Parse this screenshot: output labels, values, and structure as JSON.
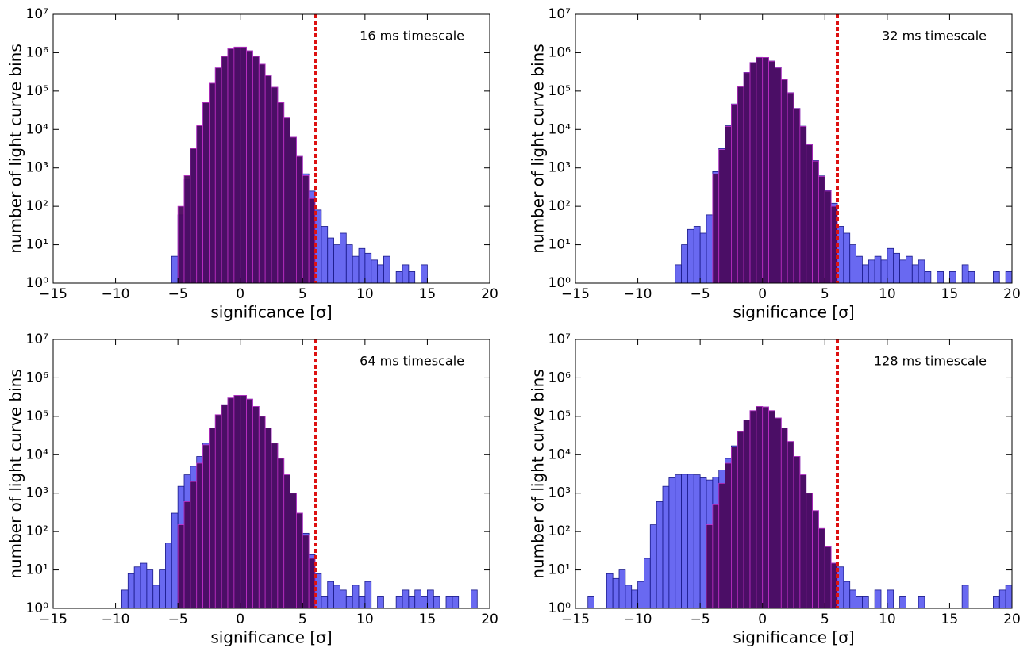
{
  "chart_data": [
    {
      "type": "histogram",
      "annotation": "16 ms timescale",
      "xlabel": "significance [σ]",
      "ylabel": "number of light curve bins",
      "xlim": [
        -15,
        20
      ],
      "ylim": [
        1,
        10000000
      ],
      "log_y": true,
      "threshold": 6,
      "threshold_color": "#dd1111",
      "xticks": [
        {
          "value": -15,
          "label": "−15"
        },
        {
          "value": -10,
          "label": "−10"
        },
        {
          "value": -5,
          "label": "−5"
        },
        0,
        5,
        10,
        15,
        20
      ],
      "yticks": [
        {
          "value": 1,
          "label": "10⁰"
        },
        {
          "value": 10,
          "label": "10¹"
        },
        {
          "value": 100,
          "label": "10²"
        },
        {
          "value": 1000,
          "label": "10³"
        },
        {
          "value": 10000,
          "label": "10⁴"
        },
        {
          "value": 100000,
          "label": "10⁵"
        },
        {
          "value": 1000000,
          "label": "10⁶"
        },
        {
          "value": 10000000,
          "label": "10⁷"
        }
      ],
      "series": [
        {
          "color": "#4444ee",
          "bins": [
            -5.5,
            -5,
            -4.5,
            -4,
            -3.5,
            -3,
            -2.5,
            -2,
            -1.5,
            -1,
            -0.5,
            0,
            0.5,
            1,
            1.5,
            2,
            2.5,
            3,
            3.5,
            4,
            4.5,
            5,
            5.5,
            6,
            6.5,
            7,
            7.5,
            8,
            8.5,
            9,
            9.5,
            10,
            10.5,
            11,
            11.5,
            12,
            12.5,
            13,
            13.5,
            14,
            14.5,
            15,
            15.5,
            16,
            16.5
          ],
          "values": [
            5,
            60,
            500,
            3000,
            12000,
            50000,
            160000,
            400000,
            800000,
            1260000,
            1400000,
            1400000,
            1120000,
            800000,
            500000,
            250000,
            126000,
            50000,
            20000,
            6300,
            2000,
            700,
            250,
            80,
            30,
            15,
            10,
            20,
            10,
            5,
            8,
            6,
            4,
            3,
            5,
            0,
            2,
            3,
            2,
            1,
            3,
            0,
            0,
            1
          ]
        },
        {
          "color": "#4a0a5e",
          "bins": [
            -5,
            -4.5,
            -4,
            -3.5,
            -3,
            -2.5,
            -2,
            -1.5,
            -1,
            -0.5,
            0,
            0.5,
            1,
            1.5,
            2,
            2.5,
            3,
            3.5,
            4,
            4.5,
            5,
            5.5,
            6
          ],
          "values": [
            100,
            630,
            3200,
            12600,
            50000,
            160000,
            400000,
            800000,
            1260000,
            1400000,
            1400000,
            1120000,
            800000,
            500000,
            250000,
            126000,
            50000,
            20000,
            6300,
            2000,
            630,
            160
          ]
        }
      ]
    },
    {
      "type": "histogram",
      "annotation": "32 ms timescale",
      "xlabel": "significance [σ]",
      "ylabel": "number of light curve bins",
      "xlim": [
        -15,
        20
      ],
      "ylim": [
        1,
        10000000
      ],
      "log_y": true,
      "threshold": 6,
      "threshold_color": "#dd1111",
      "xticks": [
        {
          "value": -15,
          "label": "−15"
        },
        {
          "value": -10,
          "label": "−10"
        },
        {
          "value": -5,
          "label": "−5"
        },
        0,
        5,
        10,
        15,
        20
      ],
      "yticks": [
        {
          "value": 1,
          "label": "10⁰"
        },
        {
          "value": 10,
          "label": "10¹"
        },
        {
          "value": 100,
          "label": "10²"
        },
        {
          "value": 1000,
          "label": "10³"
        },
        {
          "value": 10000,
          "label": "10⁴"
        },
        {
          "value": 100000,
          "label": "10⁵"
        },
        {
          "value": 1000000,
          "label": "10⁶"
        },
        {
          "value": 10000000,
          "label": "10⁷"
        }
      ],
      "series": [
        {
          "color": "#4444ee",
          "bins": [
            -7,
            -6.5,
            -6,
            -5.5,
            -5,
            -4.5,
            -4,
            -3.5,
            -3,
            -2.5,
            -2,
            -1.5,
            -1,
            -0.5,
            0,
            0.5,
            1,
            1.5,
            2,
            2.5,
            3,
            3.5,
            4,
            4.5,
            5,
            5.5,
            6,
            6.5,
            7,
            7.5,
            8,
            8.5,
            9,
            9.5,
            10,
            10.5,
            11,
            11.5,
            12,
            12.5,
            13,
            13.5,
            14,
            14.5,
            15,
            15.5,
            16,
            16.5,
            17,
            17.5,
            18,
            18.5,
            19,
            19.5,
            20
          ],
          "values": [
            3,
            10,
            25,
            30,
            20,
            60,
            800,
            3200,
            12500,
            46000,
            132000,
            305000,
            555000,
            755000,
            752000,
            605000,
            404000,
            203000,
            91000,
            35500,
            12200,
            4100,
            1550,
            620,
            260,
            120,
            30,
            20,
            10,
            5,
            3,
            4,
            5,
            4,
            8,
            6,
            4,
            5,
            3,
            4,
            2,
            1,
            2,
            1,
            2,
            1,
            3,
            2,
            0,
            0,
            0,
            2,
            0,
            2
          ]
        },
        {
          "color": "#4a0a5e",
          "bins": [
            -4,
            -3.5,
            -3,
            -2.5,
            -2,
            -1.5,
            -1,
            -0.5,
            0,
            0.5,
            1,
            1.5,
            2,
            2.5,
            3,
            3.5,
            4,
            4.5,
            5,
            5.5,
            6
          ],
          "values": [
            700,
            3000,
            12000,
            45000,
            130000,
            300000,
            550000,
            750000,
            750000,
            600000,
            400000,
            200000,
            90000,
            35000,
            12000,
            4000,
            1500,
            600,
            250,
            100
          ]
        }
      ]
    },
    {
      "type": "histogram",
      "annotation": "64 ms timescale",
      "xlabel": "significance [σ]",
      "ylabel": "number of light curve bins",
      "xlim": [
        -15,
        20
      ],
      "ylim": [
        1,
        10000000
      ],
      "log_y": true,
      "threshold": 6,
      "threshold_color": "#dd1111",
      "xticks": [
        {
          "value": -15,
          "label": "−15"
        },
        {
          "value": -10,
          "label": "−10"
        },
        {
          "value": -5,
          "label": "−5"
        },
        0,
        5,
        10,
        15,
        20
      ],
      "yticks": [
        {
          "value": 1,
          "label": "10⁰"
        },
        {
          "value": 10,
          "label": "10¹"
        },
        {
          "value": 100,
          "label": "10²"
        },
        {
          "value": 1000,
          "label": "10³"
        },
        {
          "value": 10000,
          "label": "10⁴"
        },
        {
          "value": 100000,
          "label": "10⁵"
        },
        {
          "value": 1000000,
          "label": "10⁶"
        },
        {
          "value": 10000000,
          "label": "10⁷"
        }
      ],
      "series": [
        {
          "color": "#4444ee",
          "bins": [
            -9.5,
            -9,
            -8.5,
            -8,
            -7.5,
            -7,
            -6.5,
            -6,
            -5.5,
            -5,
            -4.5,
            -4,
            -3.5,
            -3,
            -2.5,
            -2,
            -1.5,
            -1,
            -0.5,
            0,
            0.5,
            1,
            1.5,
            2,
            2.5,
            3,
            3.5,
            4,
            4.5,
            5,
            5.5,
            6,
            6.5,
            7,
            7.5,
            8,
            8.5,
            9,
            9.5,
            10,
            10.5,
            11,
            11.5,
            12,
            12.5,
            13,
            13.5,
            14,
            14.5,
            15,
            15.5,
            16,
            16.5,
            17,
            17.5,
            18,
            18.5,
            19
          ],
          "values": [
            3,
            8,
            12,
            15,
            10,
            4,
            10,
            50,
            300,
            1500,
            3000,
            5000,
            9000,
            20000,
            50000,
            110000,
            200000,
            300000,
            350000,
            350000,
            280000,
            180000,
            100000,
            50000,
            20000,
            8000,
            3000,
            1000,
            300,
            90,
            25,
            8,
            2,
            5,
            4,
            3,
            2,
            4,
            2,
            5,
            1,
            2,
            1,
            0,
            2,
            3,
            2,
            3,
            2,
            3,
            2,
            1,
            2,
            2,
            1,
            0,
            3
          ]
        },
        {
          "color": "#4a0a5e",
          "bins": [
            -5,
            -4.5,
            -4,
            -3.5,
            -3,
            -2.5,
            -2,
            -1.5,
            -1,
            -0.5,
            0,
            0.5,
            1,
            1.5,
            2,
            2.5,
            3,
            3.5,
            4,
            4.5,
            5,
            5.5,
            6
          ],
          "values": [
            150,
            600,
            2000,
            6000,
            18000,
            50000,
            110000,
            200000,
            300000,
            350000,
            350000,
            280000,
            180000,
            100000,
            50000,
            20000,
            8000,
            3000,
            1000,
            300,
            80,
            20
          ]
        }
      ]
    },
    {
      "type": "histogram",
      "annotation": "128 ms timescale",
      "xlabel": "significance [σ]",
      "ylabel": "number of light curve bins",
      "xlim": [
        -15,
        20
      ],
      "ylim": [
        1,
        10000000
      ],
      "log_y": true,
      "threshold": 6,
      "threshold_color": "#dd1111",
      "xticks": [
        {
          "value": -15,
          "label": "−15"
        },
        {
          "value": -10,
          "label": "−10"
        },
        {
          "value": -5,
          "label": "−5"
        },
        0,
        5,
        10,
        15,
        20
      ],
      "yticks": [
        {
          "value": 1,
          "label": "10⁰"
        },
        {
          "value": 10,
          "label": "10¹"
        },
        {
          "value": 100,
          "label": "10²"
        },
        {
          "value": 1000,
          "label": "10³"
        },
        {
          "value": 10000,
          "label": "10⁴"
        },
        {
          "value": 100000,
          "label": "10⁵"
        },
        {
          "value": 1000000,
          "label": "10⁶"
        },
        {
          "value": 10000000,
          "label": "10⁷"
        }
      ],
      "series": [
        {
          "color": "#4444ee",
          "bins": [
            -14,
            -13.5,
            -13,
            -12.5,
            -12,
            -11.5,
            -11,
            -10.5,
            -10,
            -9.5,
            -9,
            -8.5,
            -8,
            -7.5,
            -7,
            -6.5,
            -6,
            -5.5,
            -5,
            -4.5,
            -4,
            -3.5,
            -3,
            -2.5,
            -2,
            -1.5,
            -1,
            -0.5,
            0,
            0.5,
            1,
            1.5,
            2,
            2.5,
            3,
            3.5,
            4,
            4.5,
            5,
            5.5,
            6,
            6.5,
            7,
            7.5,
            8,
            8.5,
            9,
            9.5,
            10,
            10.5,
            11,
            11.5,
            12,
            12.5,
            13,
            13.5,
            14,
            14.5,
            15,
            15.5,
            16,
            16.5,
            17,
            17.5,
            18,
            18.5,
            19,
            19.5,
            20
          ],
          "values": [
            2,
            0,
            0,
            8,
            6,
            10,
            4,
            3,
            5,
            20,
            150,
            600,
            1500,
            2500,
            3000,
            3100,
            3100,
            3000,
            2500,
            2200,
            2600,
            4000,
            8000,
            17000,
            40000,
            80000,
            140000,
            180000,
            175000,
            140000,
            90000,
            50000,
            22000,
            9000,
            3000,
            1000,
            350,
            120,
            40,
            15,
            12,
            5,
            3,
            2,
            2,
            1,
            3,
            1,
            3,
            1,
            2,
            1,
            0,
            2,
            0,
            0,
            0,
            0,
            0,
            0,
            4,
            0,
            0,
            0,
            0,
            2,
            3,
            4
          ]
        },
        {
          "color": "#4a0a5e",
          "bins": [
            -4.5,
            -4,
            -3.5,
            -3,
            -2.5,
            -2,
            -1.5,
            -1,
            -0.5,
            0,
            0.5,
            1,
            1.5,
            2,
            2.5,
            3,
            3.5,
            4,
            4.5,
            5,
            5.5,
            6
          ],
          "values": [
            150,
            500,
            1800,
            6000,
            16000,
            40000,
            80000,
            140000,
            180000,
            175000,
            140000,
            90000,
            50000,
            22000,
            9000,
            3000,
            1000,
            350,
            120,
            40,
            15
          ]
        }
      ]
    }
  ]
}
